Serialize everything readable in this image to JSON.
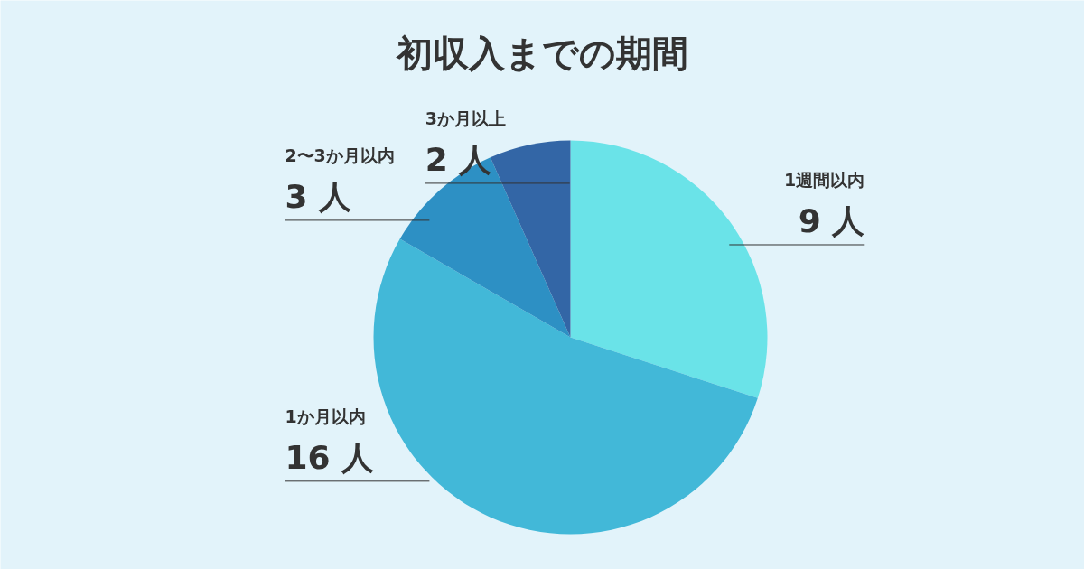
{
  "chart_data": {
    "type": "pie",
    "title": "初収入までの期間",
    "categories": [
      "1週間以内",
      "1か月以内",
      "2〜3か月以内",
      "3か月以上"
    ],
    "values": [
      9,
      16,
      3,
      2
    ],
    "colors": [
      "#6ae3e8",
      "#42b8d8",
      "#2d90c4",
      "#3366a6"
    ],
    "value_labels": [
      "9 人",
      "16 人",
      "3 人",
      "2 人"
    ]
  }
}
